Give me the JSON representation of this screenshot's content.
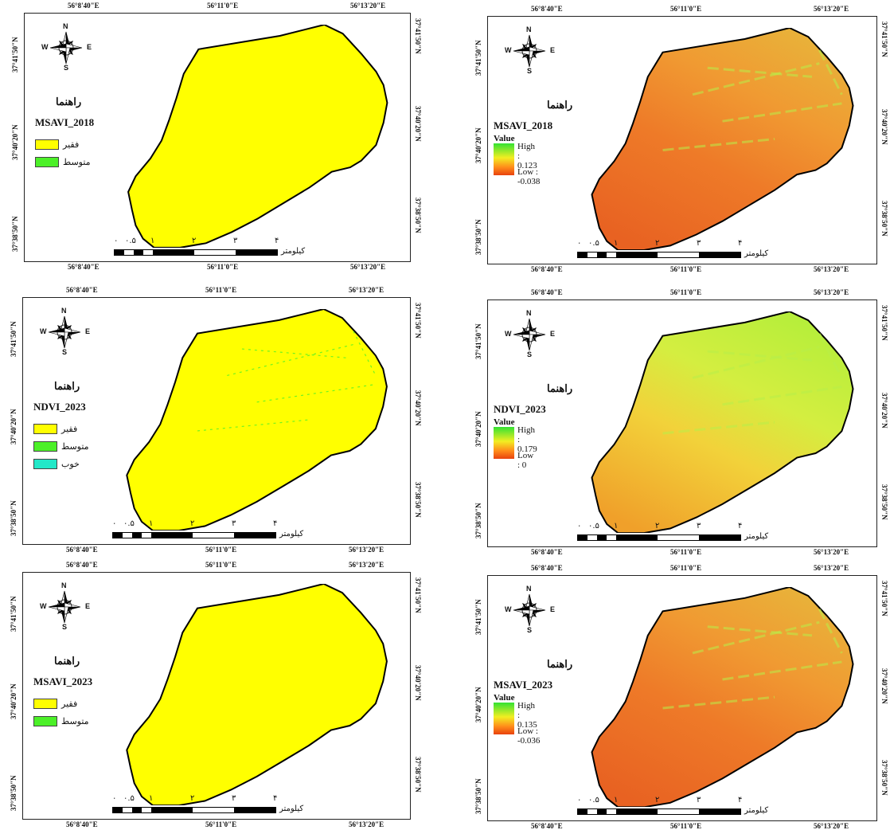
{
  "top_coords": [
    "56°8'40\"E",
    "56°11'0\"E",
    "56°13'20\"E"
  ],
  "bottom_coords": [
    "56°8'40\"E",
    "56°11'0\"E",
    "56°13'20\"E"
  ],
  "bottom_coords_quoted": [
    "56°8'40''E",
    "56°11'0''E",
    "56°13'20''E"
  ],
  "lat_coords": [
    "37°41'50\"N",
    "37°40'20\"N",
    "37°38'50\"N"
  ],
  "north_arrow": {
    "n": "N",
    "s": "S",
    "e": "E",
    "w": "W",
    "icon": "compass-rose-icon"
  },
  "legend_heading": "راهنما",
  "value_heading": "Value",
  "scale": {
    "numbers": [
      "۰",
      "۰.۵",
      "۱",
      "۲",
      "۳",
      "۴"
    ],
    "unit": "کیلومتر"
  },
  "classes": {
    "poor": "فقیر",
    "medium": "متوسط",
    "good": "خوب"
  },
  "colors": {
    "poor": "#ffff00",
    "medium": "#4cf028",
    "good": "#22e8c8",
    "outline": "#000000"
  },
  "panels": [
    {
      "id": "msavi-2018-class",
      "layer": "MSAVI_2018",
      "kind": "class",
      "classes": [
        "poor",
        "medium"
      ]
    },
    {
      "id": "msavi-2018-value",
      "layer": "MSAVI_2018",
      "kind": "value",
      "high": "High : 0.123",
      "low": "Low : -0.038"
    },
    {
      "id": "ndvi-2023-class",
      "layer": "NDVI_2023",
      "kind": "class",
      "classes": [
        "poor",
        "medium",
        "good"
      ]
    },
    {
      "id": "ndvi-2023-value",
      "layer": "NDVI_2023",
      "kind": "value",
      "high": "High : 0.179",
      "low": "Low : 0"
    },
    {
      "id": "msavi-2023-class",
      "layer": "MSAVI_2023",
      "kind": "class",
      "classes": [
        "poor",
        "medium"
      ]
    },
    {
      "id": "msavi-2023-value",
      "layer": "MSAVI_2023",
      "kind": "value",
      "high": "High : 0.135",
      "low": "Low : -0.036"
    }
  ]
}
